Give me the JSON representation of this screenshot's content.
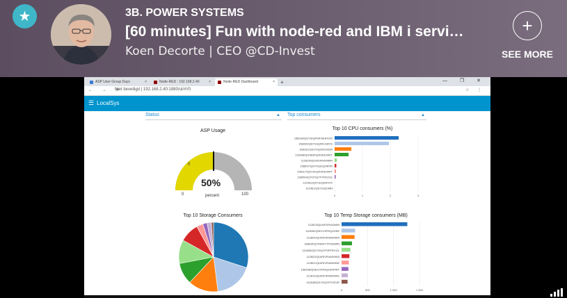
{
  "header": {
    "channel": "3B. POWER SYSTEMS",
    "title": "[60 minutes] Fun with node-red and IBM i servi…",
    "author": "Koen Decorte | CEO @CD-Invest",
    "see_more": "SEE MORE",
    "star_icon": "star-icon",
    "plus_icon": "plus-icon",
    "accent": "#3fb7c9"
  },
  "browser": {
    "tabs": [
      {
        "label": "ASP User Group Days",
        "color": "#3a7bd5"
      },
      {
        "label": "Node-RED : 192.168.2.40",
        "color": "#8f0000"
      },
      {
        "label": "Node-RED Dashboard",
        "color": "#8f0000"
      }
    ],
    "url": "Niet beveiligd | 192.168.2.40:1880/ui/#!/0",
    "window_controls": "— ❐ ✕"
  },
  "dashboard": {
    "app_title": "LocalSys",
    "bar_color": "#0094ce",
    "groups": [
      {
        "label": "Status"
      },
      {
        "label": "Top consumers"
      }
    ],
    "asp_gauge": {
      "title": "ASP Usage",
      "value": 50,
      "value_text": "50%",
      "unit": "percent",
      "min_label": "0",
      "max_label": "100",
      "threshold_label": "0",
      "fill_color": "#e2d800",
      "track_color": "#b5b5b5"
    }
  },
  "chart_data": [
    {
      "type": "bar",
      "orientation": "horizontal",
      "title": "Top 10 CPU consumers (%)",
      "categories": [
        "158160/QSYS/QPWFSERVSO",
        "158200/QSYS/QZRCSRVS",
        "158161/QSYS/QZSOSIGN",
        "112698/QUSER/QZDASOINIT",
        "112829/QLWSVR/ADMIN",
        "158037/QSYS/QSQSRVR",
        "158117/QSYS/QZDASOINIT",
        "159054/QTCP/QTFTP02211",
        "112461/QSYS/QDATOV",
        "112461/QSYS/QCMN"
      ],
      "values": [
        2.3,
        1.95,
        0.6,
        0.5,
        0.08,
        0.06,
        0.05,
        0.04,
        0.0,
        0.0
      ],
      "colors": [
        "#1f6fbd",
        "#aec7e8",
        "#ff7f0e",
        "#2ca02c",
        "#98df8a",
        "#d62728",
        "#ff9896",
        "#9467bd",
        "#c5b0d5",
        "#8c564b"
      ],
      "x_ticks": [
        "0",
        "1",
        "2",
        "3"
      ],
      "xlim": [
        0,
        3
      ]
    },
    {
      "type": "pie",
      "title": "Top 10 Storage Consumers",
      "values": [
        30,
        18,
        14,
        10,
        11,
        9,
        3,
        2,
        2,
        1
      ],
      "colors": [
        "#1f77b4",
        "#aec7e8",
        "#ff7f0e",
        "#2ca02c",
        "#98df8a",
        "#d62728",
        "#ff9896",
        "#9467bd",
        "#c5b0d5",
        "#8c564b"
      ]
    },
    {
      "type": "bar",
      "orientation": "horizontal",
      "title": "Top 10 Temp Storage consumers (MB)",
      "categories": [
        "112823/QLWSVR/ADMIN",
        "112830/QSECOFR/QZHSE",
        "112824/QLWSVR/ADMIN4",
        "158034/QTMHHTTP/ADMIN",
        "112835/QSYS/QYPSPFRCOL",
        "112820/QLWSVR/ADMIN3",
        "112821/QLWSVR/ADMIN2",
        "158158/QSECOFR/QZSHPWT",
        "112810/QLWSVR/ADMIN1",
        "112845/QSYS/QYPSJSVR"
      ],
      "values": [
        1265,
        260,
        250,
        200,
        170,
        150,
        140,
        130,
        120,
        115
      ],
      "colors": [
        "#1f6fbd",
        "#aec7e8",
        "#ff7f0e",
        "#2ca02c",
        "#98df8a",
        "#d62728",
        "#ff9896",
        "#9467bd",
        "#c5b0d5",
        "#8c564b"
      ],
      "x_ticks": [
        "0",
        "500",
        "1 000",
        "1 500"
      ],
      "xlim": [
        0,
        1500
      ]
    }
  ]
}
